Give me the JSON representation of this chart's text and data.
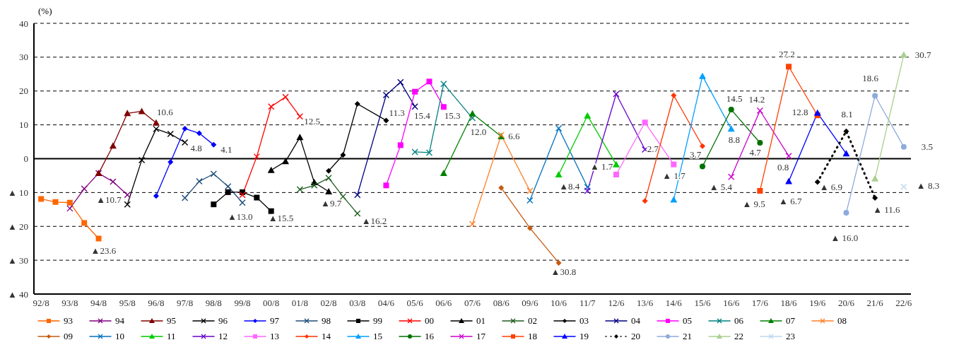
{
  "chart_data": {
    "type": "line",
    "ylabel": "(%)",
    "categories": [
      "92/8",
      null,
      "93/8",
      null,
      "94/8",
      null,
      "95/8",
      null,
      "96/8",
      null,
      "97/8",
      null,
      "98/8",
      null,
      "99/8",
      null,
      "00/8",
      null,
      "01/8",
      null,
      "02/8",
      null,
      "03/8",
      null,
      "04/6",
      null,
      "05/6",
      null,
      "06/6",
      null,
      "07/6",
      null,
      "08/6",
      null,
      "09/6",
      null,
      "10/6",
      null,
      "11/7",
      null,
      "12/6",
      null,
      "13/6",
      null,
      "14/6",
      null,
      "15/6",
      null,
      "16/6",
      null,
      "17/6",
      null,
      "18/6",
      null,
      "19/6",
      null,
      "20/6",
      null,
      "21/6",
      null,
      "22/6"
    ],
    "ylim": [
      -40,
      40
    ],
    "yticks": [
      40,
      30,
      20,
      10,
      0,
      {
        "value": -10,
        "label": "▲ 10"
      },
      {
        "value": -20,
        "label": "▲ 20"
      },
      {
        "value": -30,
        "label": "▲ 30"
      },
      {
        "value": -40,
        "label": "▲ 40"
      }
    ],
    "grid": "y",
    "legend": "bottom",
    "ref_lines": [
      {
        "axis": "y",
        "value": 0,
        "color": "#000000",
        "line_style": "solid"
      }
    ],
    "series": [
      {
        "name": "93",
        "color": "#ff6600",
        "marker": "square",
        "values": [
          -11.9,
          -12.8,
          -13.0,
          -19.0,
          -23.6,
          null,
          null,
          null,
          null,
          null,
          null,
          null,
          null,
          null,
          null,
          null,
          null,
          null,
          null,
          null,
          null,
          null,
          null,
          null,
          null,
          null,
          null,
          null,
          null,
          null,
          null,
          null,
          null,
          null,
          null,
          null,
          null,
          null,
          null,
          null,
          null,
          null,
          null,
          null,
          null,
          null,
          null,
          null,
          null,
          null,
          null,
          null,
          null,
          null,
          null,
          null,
          null,
          null,
          null,
          null,
          null
        ]
      },
      {
        "name": "94",
        "color": "#800080",
        "marker": "cross",
        "values": [
          null,
          null,
          -14.7,
          -8.9,
          -4.3,
          -6.8,
          -10.7,
          null,
          null,
          null,
          null,
          null,
          null,
          null,
          null,
          null,
          null,
          null,
          null,
          null,
          null,
          null,
          null,
          null,
          null,
          null,
          null,
          null,
          null,
          null,
          null,
          null,
          null,
          null,
          null,
          null,
          null,
          null,
          null,
          null,
          null,
          null,
          null,
          null,
          null,
          null,
          null,
          null,
          null,
          null,
          null,
          null,
          null,
          null,
          null,
          null,
          null,
          null,
          null,
          null,
          null
        ]
      },
      {
        "name": "95",
        "color": "#800000",
        "marker": "triangle",
        "values": [
          null,
          null,
          null,
          null,
          -4.3,
          3.8,
          13.4,
          14.0,
          10.6,
          null,
          null,
          null,
          null,
          null,
          null,
          null,
          null,
          null,
          null,
          null,
          null,
          null,
          null,
          null,
          null,
          null,
          null,
          null,
          null,
          null,
          null,
          null,
          null,
          null,
          null,
          null,
          null,
          null,
          null,
          null,
          null,
          null,
          null,
          null,
          null,
          null,
          null,
          null,
          null,
          null,
          null,
          null,
          null,
          null,
          null,
          null,
          null,
          null,
          null,
          null,
          null
        ]
      },
      {
        "name": "96",
        "color": "#000000",
        "marker": "cross",
        "values": [
          null,
          null,
          null,
          null,
          null,
          null,
          -13.5,
          -0.4,
          8.8,
          7.3,
          4.8,
          null,
          null,
          null,
          null,
          null,
          null,
          null,
          null,
          null,
          null,
          null,
          null,
          null,
          null,
          null,
          null,
          null,
          null,
          null,
          null,
          null,
          null,
          null,
          null,
          null,
          null,
          null,
          null,
          null,
          null,
          null,
          null,
          null,
          null,
          null,
          null,
          null,
          null,
          null,
          null,
          null,
          null,
          null,
          null,
          null,
          null,
          null,
          null,
          null,
          null
        ]
      },
      {
        "name": "97",
        "color": "#0000ff",
        "marker": "diamond",
        "values": [
          null,
          null,
          null,
          null,
          null,
          null,
          null,
          null,
          -11.0,
          -1.0,
          8.9,
          7.5,
          4.1,
          null,
          null,
          null,
          null,
          null,
          null,
          null,
          null,
          null,
          null,
          null,
          null,
          null,
          null,
          null,
          null,
          null,
          null,
          null,
          null,
          null,
          null,
          null,
          null,
          null,
          null,
          null,
          null,
          null,
          null,
          null,
          null,
          null,
          null,
          null,
          null,
          null,
          null,
          null,
          null,
          null,
          null,
          null,
          null,
          null,
          null,
          null,
          null
        ]
      },
      {
        "name": "98",
        "color": "#1f4e79",
        "marker": "cross",
        "values": [
          null,
          null,
          null,
          null,
          null,
          null,
          null,
          null,
          null,
          null,
          -11.6,
          -6.7,
          -4.5,
          -8.2,
          -13.0,
          null,
          null,
          null,
          null,
          null,
          null,
          null,
          null,
          null,
          null,
          null,
          null,
          null,
          null,
          null,
          null,
          null,
          null,
          null,
          null,
          null,
          null,
          null,
          null,
          null,
          null,
          null,
          null,
          null,
          null,
          null,
          null,
          null,
          null,
          null,
          null,
          null,
          null,
          null,
          null,
          null,
          null,
          null,
          null,
          null,
          null
        ]
      },
      {
        "name": "99",
        "color": "#000000",
        "marker": "square",
        "values": [
          null,
          null,
          null,
          null,
          null,
          null,
          null,
          null,
          null,
          null,
          null,
          null,
          -13.5,
          -9.9,
          -9.9,
          -11.5,
          -15.5,
          null,
          null,
          null,
          null,
          null,
          null,
          null,
          null,
          null,
          null,
          null,
          null,
          null,
          null,
          null,
          null,
          null,
          null,
          null,
          null,
          null,
          null,
          null,
          null,
          null,
          null,
          null,
          null,
          null,
          null,
          null,
          null,
          null,
          null,
          null,
          null,
          null,
          null,
          null,
          null,
          null,
          null,
          null,
          null
        ]
      },
      {
        "name": "00",
        "color": "#ff0000",
        "marker": "cross",
        "values": [
          null,
          null,
          null,
          null,
          null,
          null,
          null,
          null,
          null,
          null,
          null,
          null,
          null,
          null,
          -10.7,
          0.6,
          15.4,
          18.2,
          12.5,
          null,
          null,
          null,
          null,
          null,
          null,
          null,
          null,
          null,
          null,
          null,
          null,
          null,
          null,
          null,
          null,
          null,
          null,
          null,
          null,
          null,
          null,
          null,
          null,
          null,
          null,
          null,
          null,
          null,
          null,
          null,
          null,
          null,
          null,
          null,
          null,
          null,
          null,
          null,
          null,
          null,
          null
        ]
      },
      {
        "name": "01",
        "color": "#000000",
        "marker": "triangle",
        "values": [
          null,
          null,
          null,
          null,
          null,
          null,
          null,
          null,
          null,
          null,
          null,
          null,
          null,
          null,
          null,
          null,
          -3.4,
          -0.8,
          6.3,
          -7.0,
          -9.7,
          null,
          null,
          null,
          null,
          null,
          null,
          null,
          null,
          null,
          null,
          null,
          null,
          null,
          null,
          null,
          null,
          null,
          null,
          null,
          null,
          null,
          null,
          null,
          null,
          null,
          null,
          null,
          null,
          null,
          null,
          null,
          null,
          null,
          null,
          null,
          null,
          null,
          null,
          null,
          null
        ]
      },
      {
        "name": "02",
        "color": "#1e5c1e",
        "marker": "cross",
        "values": [
          null,
          null,
          null,
          null,
          null,
          null,
          null,
          null,
          null,
          null,
          null,
          null,
          null,
          null,
          null,
          null,
          null,
          null,
          -9.1,
          -7.9,
          -5.7,
          -11.2,
          -16.2,
          null,
          null,
          null,
          null,
          null,
          null,
          null,
          null,
          null,
          null,
          null,
          null,
          null,
          null,
          null,
          null,
          null,
          null,
          null,
          null,
          null,
          null,
          null,
          null,
          null,
          null,
          null,
          null,
          null,
          null,
          null,
          null,
          null,
          null,
          null,
          null,
          null,
          null
        ]
      },
      {
        "name": "03",
        "color": "#000000",
        "marker": "diamond",
        "values": [
          null,
          null,
          null,
          null,
          null,
          null,
          null,
          null,
          null,
          null,
          null,
          null,
          null,
          null,
          null,
          null,
          null,
          null,
          null,
          null,
          -3.6,
          1.1,
          16.2,
          null,
          11.3,
          null,
          null,
          null,
          null,
          null,
          null,
          null,
          null,
          null,
          null,
          null,
          null,
          null,
          null,
          null,
          null,
          null,
          null,
          null,
          null,
          null,
          null,
          null,
          null,
          null,
          null,
          null,
          null,
          null,
          null,
          null,
          null,
          null,
          null,
          null,
          null
        ]
      },
      {
        "name": "04",
        "color": "#000080",
        "marker": "cross",
        "values": [
          null,
          null,
          null,
          null,
          null,
          null,
          null,
          null,
          null,
          null,
          null,
          null,
          null,
          null,
          null,
          null,
          null,
          null,
          null,
          null,
          null,
          null,
          -10.7,
          null,
          18.8,
          22.6,
          15.4,
          null,
          null,
          null,
          null,
          null,
          null,
          null,
          null,
          null,
          null,
          null,
          null,
          null,
          null,
          null,
          null,
          null,
          null,
          null,
          null,
          null,
          null,
          null,
          null,
          null,
          null,
          null,
          null,
          null,
          null,
          null,
          null,
          null,
          null
        ]
      },
      {
        "name": "05",
        "color": "#ff00ff",
        "marker": "square",
        "values": [
          null,
          null,
          null,
          null,
          null,
          null,
          null,
          null,
          null,
          null,
          null,
          null,
          null,
          null,
          null,
          null,
          null,
          null,
          null,
          null,
          null,
          null,
          null,
          null,
          -7.9,
          4.0,
          19.8,
          22.8,
          15.3,
          null,
          null,
          null,
          null,
          null,
          null,
          null,
          null,
          null,
          null,
          null,
          null,
          null,
          null,
          null,
          null,
          null,
          null,
          null,
          null,
          null,
          null,
          null,
          null,
          null,
          null,
          null,
          null,
          null,
          null,
          null,
          null
        ]
      },
      {
        "name": "06",
        "color": "#008080",
        "marker": "cross",
        "values": [
          null,
          null,
          null,
          null,
          null,
          null,
          null,
          null,
          null,
          null,
          null,
          null,
          null,
          null,
          null,
          null,
          null,
          null,
          null,
          null,
          null,
          null,
          null,
          null,
          null,
          null,
          2.0,
          1.8,
          22.1,
          null,
          12.0,
          null,
          null,
          null,
          null,
          null,
          null,
          null,
          null,
          null,
          null,
          null,
          null,
          null,
          null,
          null,
          null,
          null,
          null,
          null,
          null,
          null,
          null,
          null,
          null,
          null,
          null,
          null,
          null,
          null,
          null
        ]
      },
      {
        "name": "07",
        "color": "#008000",
        "marker": "triangle",
        "values": [
          null,
          null,
          null,
          null,
          null,
          null,
          null,
          null,
          null,
          null,
          null,
          null,
          null,
          null,
          null,
          null,
          null,
          null,
          null,
          null,
          null,
          null,
          null,
          null,
          null,
          null,
          null,
          null,
          -4.3,
          null,
          13.3,
          null,
          6.6,
          null,
          null,
          null,
          null,
          null,
          null,
          null,
          null,
          null,
          null,
          null,
          null,
          null,
          null,
          null,
          null,
          null,
          null,
          null,
          null,
          null,
          null,
          null,
          null,
          null,
          null,
          null,
          null
        ]
      },
      {
        "name": "08",
        "color": "#ff7f27",
        "marker": "cross",
        "values": [
          null,
          null,
          null,
          null,
          null,
          null,
          null,
          null,
          null,
          null,
          null,
          null,
          null,
          null,
          null,
          null,
          null,
          null,
          null,
          null,
          null,
          null,
          null,
          null,
          null,
          null,
          null,
          null,
          null,
          null,
          -19.3,
          null,
          7.0,
          null,
          -9.5,
          null,
          null,
          null,
          null,
          null,
          null,
          null,
          null,
          null,
          null,
          null,
          null,
          null,
          null,
          null,
          null,
          null,
          null,
          null,
          null,
          null,
          null,
          null,
          null,
          null,
          null
        ]
      },
      {
        "name": "09",
        "color": "#c55a11",
        "marker": "diamond",
        "values": [
          null,
          null,
          null,
          null,
          null,
          null,
          null,
          null,
          null,
          null,
          null,
          null,
          null,
          null,
          null,
          null,
          null,
          null,
          null,
          null,
          null,
          null,
          null,
          null,
          null,
          null,
          null,
          null,
          null,
          null,
          null,
          null,
          -8.6,
          null,
          -20.5,
          null,
          -30.8,
          null,
          null,
          null,
          null,
          null,
          null,
          null,
          null,
          null,
          null,
          null,
          null,
          null,
          null,
          null,
          null,
          null,
          null,
          null,
          null,
          null,
          null,
          null,
          null
        ]
      },
      {
        "name": "10",
        "color": "#0070c0",
        "marker": "cross",
        "values": [
          null,
          null,
          null,
          null,
          null,
          null,
          null,
          null,
          null,
          null,
          null,
          null,
          null,
          null,
          null,
          null,
          null,
          null,
          null,
          null,
          null,
          null,
          null,
          null,
          null,
          null,
          null,
          null,
          null,
          null,
          null,
          null,
          null,
          null,
          -12.3,
          null,
          9.0,
          null,
          -8.4,
          null,
          null,
          null,
          null,
          null,
          null,
          null,
          null,
          null,
          null,
          null,
          null,
          null,
          null,
          null,
          null,
          null,
          null,
          null,
          null,
          null,
          null
        ]
      },
      {
        "name": "11",
        "color": "#00cc00",
        "marker": "triangle",
        "values": [
          null,
          null,
          null,
          null,
          null,
          null,
          null,
          null,
          null,
          null,
          null,
          null,
          null,
          null,
          null,
          null,
          null,
          null,
          null,
          null,
          null,
          null,
          null,
          null,
          null,
          null,
          null,
          null,
          null,
          null,
          null,
          null,
          null,
          null,
          null,
          null,
          -4.7,
          null,
          12.7,
          null,
          -1.7,
          null,
          null,
          null,
          null,
          null,
          null,
          null,
          null,
          null,
          null,
          null,
          null,
          null,
          null,
          null,
          null,
          null,
          null,
          null,
          null
        ]
      },
      {
        "name": "12",
        "color": "#6600cc",
        "marker": "cross",
        "values": [
          null,
          null,
          null,
          null,
          null,
          null,
          null,
          null,
          null,
          null,
          null,
          null,
          null,
          null,
          null,
          null,
          null,
          null,
          null,
          null,
          null,
          null,
          null,
          null,
          null,
          null,
          null,
          null,
          null,
          null,
          null,
          null,
          null,
          null,
          null,
          null,
          null,
          null,
          -9.5,
          null,
          19.1,
          null,
          2.7,
          null,
          null,
          null,
          null,
          null,
          null,
          null,
          null,
          null,
          null,
          null,
          null,
          null,
          null,
          null,
          null,
          null,
          null
        ]
      },
      {
        "name": "13",
        "color": "#ff66ff",
        "marker": "square",
        "values": [
          null,
          null,
          null,
          null,
          null,
          null,
          null,
          null,
          null,
          null,
          null,
          null,
          null,
          null,
          null,
          null,
          null,
          null,
          null,
          null,
          null,
          null,
          null,
          null,
          null,
          null,
          null,
          null,
          null,
          null,
          null,
          null,
          null,
          null,
          null,
          null,
          null,
          null,
          null,
          null,
          -4.7,
          null,
          10.7,
          null,
          -1.7,
          null,
          null,
          null,
          null,
          null,
          null,
          null,
          null,
          null,
          null,
          null,
          null,
          null,
          null,
          null,
          null
        ]
      },
      {
        "name": "14",
        "color": "#ff3300",
        "marker": "diamond",
        "values": [
          null,
          null,
          null,
          null,
          null,
          null,
          null,
          null,
          null,
          null,
          null,
          null,
          null,
          null,
          null,
          null,
          null,
          null,
          null,
          null,
          null,
          null,
          null,
          null,
          null,
          null,
          null,
          null,
          null,
          null,
          null,
          null,
          null,
          null,
          null,
          null,
          null,
          null,
          null,
          null,
          null,
          null,
          -12.5,
          null,
          18.7,
          null,
          3.7,
          null,
          null,
          null,
          null,
          null,
          null,
          null,
          null,
          null,
          null,
          null,
          null,
          null,
          null
        ]
      },
      {
        "name": "15",
        "color": "#00a0ff",
        "marker": "triangle",
        "values": [
          null,
          null,
          null,
          null,
          null,
          null,
          null,
          null,
          null,
          null,
          null,
          null,
          null,
          null,
          null,
          null,
          null,
          null,
          null,
          null,
          null,
          null,
          null,
          null,
          null,
          null,
          null,
          null,
          null,
          null,
          null,
          null,
          null,
          null,
          null,
          null,
          null,
          null,
          null,
          null,
          null,
          null,
          null,
          null,
          -12.1,
          null,
          24.4,
          null,
          8.8,
          null,
          null,
          null,
          null,
          null,
          null,
          null,
          null,
          null,
          null,
          null,
          null
        ]
      },
      {
        "name": "16",
        "color": "#007000",
        "marker": "circle",
        "values": [
          null,
          null,
          null,
          null,
          null,
          null,
          null,
          null,
          null,
          null,
          null,
          null,
          null,
          null,
          null,
          null,
          null,
          null,
          null,
          null,
          null,
          null,
          null,
          null,
          null,
          null,
          null,
          null,
          null,
          null,
          null,
          null,
          null,
          null,
          null,
          null,
          null,
          null,
          null,
          null,
          null,
          null,
          null,
          null,
          null,
          null,
          -2.3,
          null,
          14.5,
          null,
          4.7,
          null,
          null,
          null,
          null,
          null,
          null,
          null,
          null,
          null,
          null
        ]
      },
      {
        "name": "17",
        "color": "#cc00cc",
        "marker": "cross",
        "values": [
          null,
          null,
          null,
          null,
          null,
          null,
          null,
          null,
          null,
          null,
          null,
          null,
          null,
          null,
          null,
          null,
          null,
          null,
          null,
          null,
          null,
          null,
          null,
          null,
          null,
          null,
          null,
          null,
          null,
          null,
          null,
          null,
          null,
          null,
          null,
          null,
          null,
          null,
          null,
          null,
          null,
          null,
          null,
          null,
          null,
          null,
          null,
          null,
          -5.4,
          null,
          14.2,
          null,
          0.8,
          null,
          null,
          null,
          null,
          null,
          null,
          null,
          null
        ]
      },
      {
        "name": "18",
        "color": "#ff4000",
        "marker": "square",
        "values": [
          null,
          null,
          null,
          null,
          null,
          null,
          null,
          null,
          null,
          null,
          null,
          null,
          null,
          null,
          null,
          null,
          null,
          null,
          null,
          null,
          null,
          null,
          null,
          null,
          null,
          null,
          null,
          null,
          null,
          null,
          null,
          null,
          null,
          null,
          null,
          null,
          null,
          null,
          null,
          null,
          null,
          null,
          null,
          null,
          null,
          null,
          null,
          null,
          null,
          null,
          -9.5,
          null,
          27.2,
          null,
          12.8,
          null,
          null,
          null,
          null,
          null,
          null
        ]
      },
      {
        "name": "19",
        "color": "#0000ff",
        "marker": "triangle",
        "values": [
          null,
          null,
          null,
          null,
          null,
          null,
          null,
          null,
          null,
          null,
          null,
          null,
          null,
          null,
          null,
          null,
          null,
          null,
          null,
          null,
          null,
          null,
          null,
          null,
          null,
          null,
          null,
          null,
          null,
          null,
          null,
          null,
          null,
          null,
          null,
          null,
          null,
          null,
          null,
          null,
          null,
          null,
          null,
          null,
          null,
          null,
          null,
          null,
          null,
          null,
          null,
          null,
          -6.7,
          null,
          13.5,
          null,
          1.5,
          null,
          null,
          null,
          null
        ]
      },
      {
        "name": "20",
        "color": "#000000",
        "marker": "diamond",
        "line_style": "dotted",
        "values": [
          null,
          null,
          null,
          null,
          null,
          null,
          null,
          null,
          null,
          null,
          null,
          null,
          null,
          null,
          null,
          null,
          null,
          null,
          null,
          null,
          null,
          null,
          null,
          null,
          null,
          null,
          null,
          null,
          null,
          null,
          null,
          null,
          null,
          null,
          null,
          null,
          null,
          null,
          null,
          null,
          null,
          null,
          null,
          null,
          null,
          null,
          null,
          null,
          null,
          null,
          null,
          null,
          null,
          null,
          -6.9,
          null,
          8.1,
          null,
          -11.6,
          null,
          null
        ]
      },
      {
        "name": "21",
        "color": "#8faadc",
        "marker": "circle",
        "values": [
          null,
          null,
          null,
          null,
          null,
          null,
          null,
          null,
          null,
          null,
          null,
          null,
          null,
          null,
          null,
          null,
          null,
          null,
          null,
          null,
          null,
          null,
          null,
          null,
          null,
          null,
          null,
          null,
          null,
          null,
          null,
          null,
          null,
          null,
          null,
          null,
          null,
          null,
          null,
          null,
          null,
          null,
          null,
          null,
          null,
          null,
          null,
          null,
          null,
          null,
          null,
          null,
          null,
          null,
          null,
          null,
          -16.0,
          null,
          18.6,
          null,
          3.5
        ]
      },
      {
        "name": "22",
        "color": "#a9d08e",
        "marker": "triangle",
        "values": [
          null,
          null,
          null,
          null,
          null,
          null,
          null,
          null,
          null,
          null,
          null,
          null,
          null,
          null,
          null,
          null,
          null,
          null,
          null,
          null,
          null,
          null,
          null,
          null,
          null,
          null,
          null,
          null,
          null,
          null,
          null,
          null,
          null,
          null,
          null,
          null,
          null,
          null,
          null,
          null,
          null,
          null,
          null,
          null,
          null,
          null,
          null,
          null,
          null,
          null,
          null,
          null,
          null,
          null,
          null,
          null,
          null,
          null,
          -5.9,
          null,
          30.7
        ]
      },
      {
        "name": "23",
        "color": "#bdd7ee",
        "marker": "cross",
        "values": [
          null,
          null,
          null,
          null,
          null,
          null,
          null,
          null,
          null,
          null,
          null,
          null,
          null,
          null,
          null,
          null,
          null,
          null,
          null,
          null,
          null,
          null,
          null,
          null,
          null,
          null,
          null,
          null,
          null,
          null,
          null,
          null,
          null,
          null,
          null,
          null,
          null,
          null,
          null,
          null,
          null,
          null,
          null,
          null,
          null,
          null,
          null,
          null,
          null,
          null,
          null,
          null,
          null,
          null,
          null,
          null,
          null,
          null,
          null,
          null,
          -8.3
        ]
      }
    ],
    "annotations": [
      {
        "text": "▲23.6",
        "x": "94/8",
        "y": -23.6
      },
      {
        "text": "▲10.7",
        "x": "95/8",
        "y": -10.7
      },
      {
        "text": "10.6",
        "x": "96/8",
        "y": 10.6
      },
      {
        "text": "4.8",
        "x": "97/8",
        "y": 4.8
      },
      {
        "text": "4.1",
        "x": "98/8",
        "y": 4.1
      },
      {
        "text": "▲13.0",
        "x": "99/8",
        "y": -13.0
      },
      {
        "text": "12.5",
        "x": "01/8",
        "y": 12.5
      },
      {
        "text": "▲15.5",
        "x": "00/8",
        "y": -15.5
      },
      {
        "text": "▲9.7",
        "x": "02/8",
        "y": -9.7
      },
      {
        "text": "▲16.2",
        "x": "03/8",
        "y": -16.2
      },
      {
        "text": "11.3",
        "x": "04/6",
        "y": 11.3
      },
      {
        "text": "15.4",
        "x": "05/6",
        "y": 15.4
      },
      {
        "text": "15.3",
        "x": "06/6",
        "y": 15.3
      },
      {
        "text": "12.0",
        "x": "07/6",
        "y": 12.0
      },
      {
        "text": "6.6",
        "x": "08/6",
        "y": 6.6
      },
      {
        "text": "▲30.8",
        "x": "10/6",
        "y": -30.8
      },
      {
        "text": "▲8.4",
        "x": "11/7",
        "y": -8.4
      },
      {
        "text": "▲ 1.7",
        "x": "12/6",
        "y": -1.7
      },
      {
        "text": "2.7",
        "x": "13/6",
        "y": 2.7
      },
      {
        "text": "▲ 1.7",
        "x": "14/6",
        "y": -1.7
      },
      {
        "text": "3.7",
        "x": "15/6",
        "y": 3.7
      },
      {
        "text": "8.8",
        "x": "16/6",
        "y": 8.8
      },
      {
        "text": "14.5",
        "x": "16/6",
        "y": 14.5
      },
      {
        "text": "14.2",
        "x": "17/6",
        "y": 14.2
      },
      {
        "text": "4.7",
        "x": "17/6",
        "y": 4.7
      },
      {
        "text": "▲ 5.4",
        "x": "16/6",
        "y": -5.4
      },
      {
        "text": "▲ 9.5",
        "x": "17/6",
        "y": -9.5
      },
      {
        "text": "0.8",
        "x": "18/6",
        "y": 0.8
      },
      {
        "text": "27.2",
        "x": "18/6",
        "y": 27.2
      },
      {
        "text": "12.8",
        "x": "19/6",
        "y": 12.8
      },
      {
        "text": "▲ 6.7",
        "x": "18/6",
        "y": -6.7
      },
      {
        "text": "8.1",
        "x": "20/6",
        "y": 8.1
      },
      {
        "text": "▲ 6.9",
        "x": "19/6",
        "y": -6.9
      },
      {
        "text": "▲ 16.0",
        "x": "20/6",
        "y": -16.0
      },
      {
        "text": "18.6",
        "x": "21/6",
        "y": 18.6
      },
      {
        "text": "▲ 11.6",
        "x": "21/6",
        "y": -11.6
      },
      {
        "text": "3.5",
        "x": "22/6",
        "y": 3.5
      },
      {
        "text": "30.7",
        "x": "22/6",
        "y": 30.7
      },
      {
        "text": "▲ 8.3",
        "x": "22/6",
        "y": -8.3
      }
    ]
  }
}
